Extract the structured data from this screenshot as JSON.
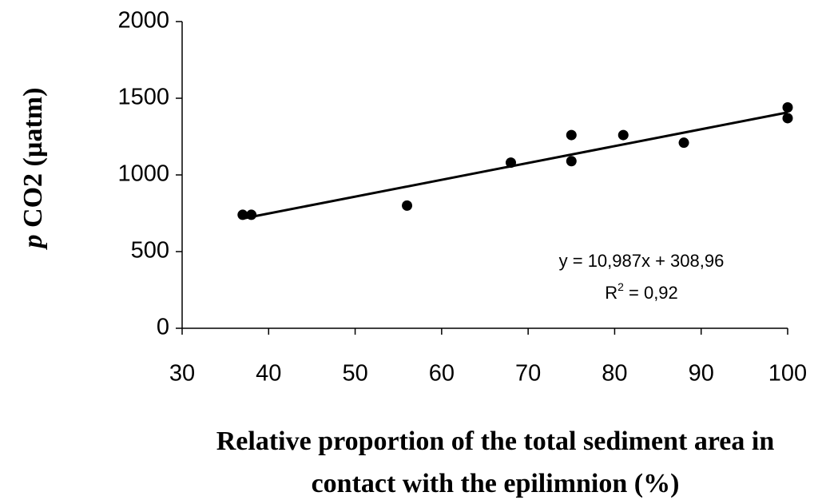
{
  "chart_data": {
    "type": "scatter",
    "x_label": "Relative proportion of the total sediment area in contact with the epilimnion (%)",
    "x_label_lines": [
      "Relative proportion of the total sediment area in",
      "contact with the epilimnion (%)"
    ],
    "y_label": {
      "italic": "p",
      "rest": " CO2 (µatm)"
    },
    "series": [
      {
        "color": "#000000",
        "x": [
          37,
          38,
          56,
          68,
          75,
          75,
          81,
          88,
          100,
          100
        ],
        "values": [
          740,
          740,
          800,
          1080,
          1260,
          1090,
          1260,
          1210,
          1440,
          1370
        ]
      }
    ],
    "trendline": {
      "color": "#000000",
      "x": [
        37,
        100
      ],
      "values": [
        715.5,
        1407.7
      ]
    },
    "annotations": {
      "equation": "y = 10,987x + 308,96",
      "r2": {
        "base": "R",
        "sup": "2",
        "rest": " = 0,92"
      }
    },
    "xlim": [
      30,
      100
    ],
    "xticks": [
      30,
      40,
      50,
      60,
      70,
      80,
      90,
      100
    ],
    "ylim": [
      0,
      2000
    ],
    "yticks": [
      0,
      500,
      1000,
      1500,
      2000
    ],
    "grid": false
  }
}
